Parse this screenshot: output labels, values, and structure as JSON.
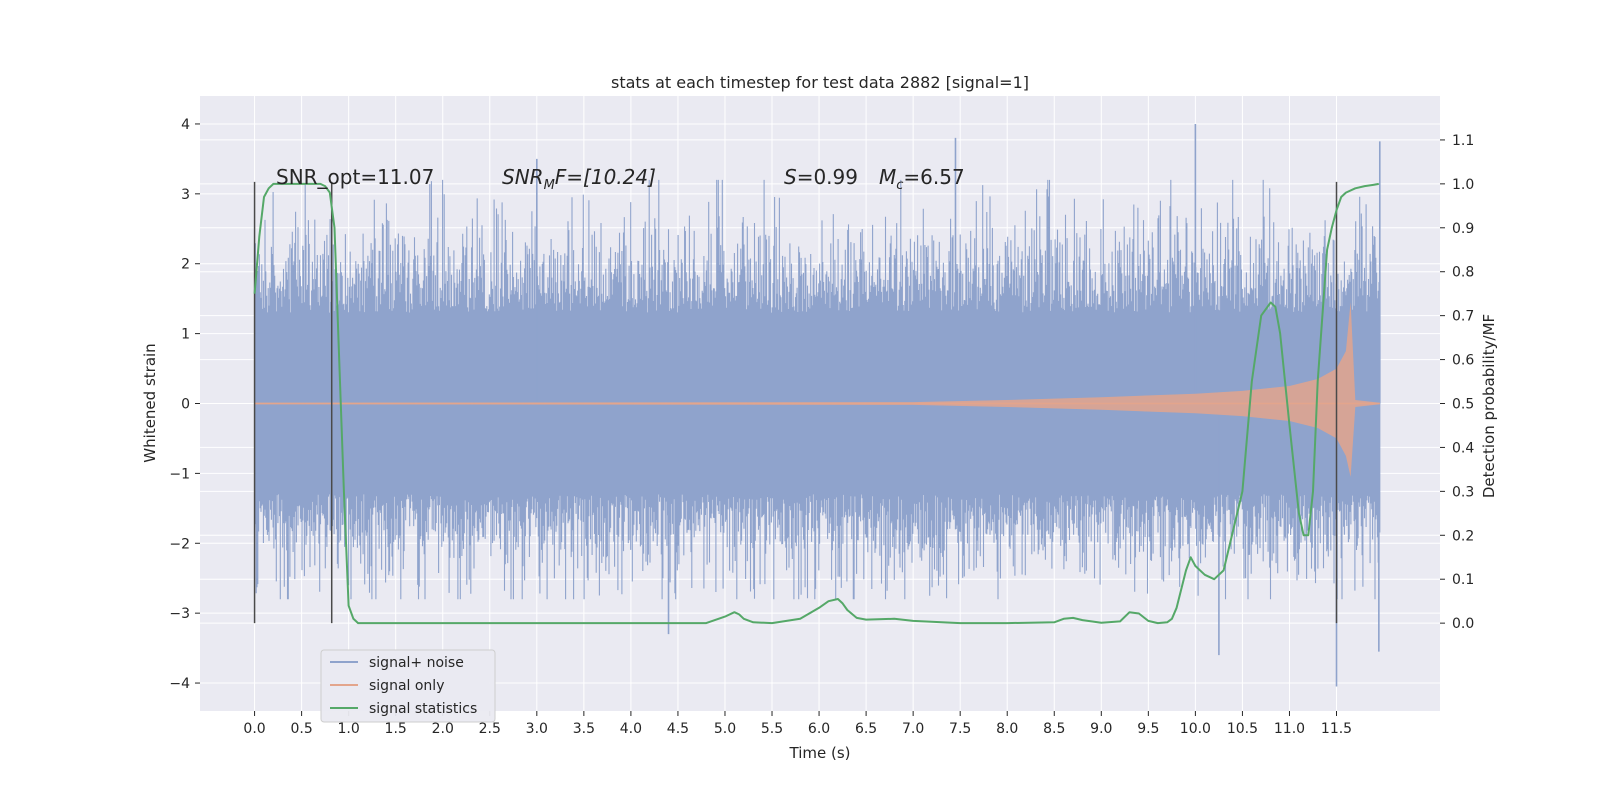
{
  "chart_data": {
    "type": "line",
    "title": "stats at each timestep for test data 2882 [signal=1]",
    "xlabel": "Time (s)",
    "ylabel_left": "Whitened strain",
    "ylabel_right": "Detection probability/MF",
    "xlim": [
      -0.58,
      12.6
    ],
    "ylim_left": [
      -4.4,
      4.4
    ],
    "ylim_right": [
      -0.2,
      1.2
    ],
    "x_ticks": [
      "0.0",
      "0.5",
      "1.0",
      "1.5",
      "2.0",
      "2.5",
      "3.0",
      "3.5",
      "4.0",
      "4.5",
      "5.0",
      "5.5",
      "6.0",
      "6.5",
      "7.0",
      "7.5",
      "8.0",
      "8.5",
      "9.0",
      "9.5",
      "10.0",
      "10.5",
      "11.0",
      "11.5"
    ],
    "y_ticks_left": [
      "4",
      "3",
      "2",
      "1",
      "0",
      "−1",
      "−2",
      "−3",
      "−4"
    ],
    "y_ticks_right": [
      "1.1",
      "1.0",
      "0.9",
      "0.8",
      "0.7",
      "0.6",
      "0.5",
      "0.4",
      "0.3",
      "0.2",
      "0.1",
      "0.0"
    ],
    "grid": true,
    "legend_position": "lower-left",
    "annotations": {
      "snr_opt": "SNR_opt=11.07",
      "snr_mf_main": "SNR",
      "snr_mf_sub": "M",
      "snr_mf_rest": "F=[10.24]",
      "s_main": "S",
      "s_rest": "=0.99",
      "mc_main": "M",
      "mc_sub": "c",
      "mc_rest": "=6.57"
    },
    "vertical_lines_x": [
      0.0,
      0.82,
      11.5
    ],
    "series": [
      {
        "name": "signal+ noise",
        "color": "#8fa3cc",
        "x_range": [
          0.0,
          11.96
        ],
        "envelope_1sigma": 1.25,
        "typical_range": [
          -2.2,
          2.6
        ],
        "extremes": [
          4.0,
          -4.05
        ]
      },
      {
        "name": "signal only",
        "color": "#e3a58c",
        "x_range": [
          0.0,
          11.96
        ],
        "peak_time": 11.65,
        "peak_amplitude": [
          1.45,
          -1.05
        ],
        "envelope": [
          [
            0.0,
            0.01
          ],
          [
            7.0,
            0.02
          ],
          [
            8.0,
            0.05
          ],
          [
            9.0,
            0.09
          ],
          [
            10.0,
            0.14
          ],
          [
            10.5,
            0.18
          ],
          [
            11.0,
            0.25
          ],
          [
            11.3,
            0.35
          ],
          [
            11.5,
            0.5
          ],
          [
            11.6,
            0.75
          ],
          [
            11.65,
            1.45
          ],
          [
            11.7,
            0.05
          ],
          [
            11.96,
            0.01
          ]
        ]
      },
      {
        "name": "signal statistics",
        "color": "#55a868",
        "x": [
          0.0,
          0.05,
          0.1,
          0.15,
          0.2,
          0.3,
          0.5,
          0.7,
          0.75,
          0.8,
          0.85,
          0.9,
          0.95,
          1.0,
          1.05,
          1.1,
          1.2,
          1.5,
          2.0,
          3.0,
          4.0,
          4.8,
          5.0,
          5.1,
          5.15,
          5.2,
          5.3,
          5.5,
          5.8,
          6.0,
          6.1,
          6.2,
          6.25,
          6.3,
          6.4,
          6.5,
          6.8,
          7.0,
          7.5,
          8.0,
          8.5,
          8.6,
          8.7,
          8.8,
          9.0,
          9.2,
          9.3,
          9.4,
          9.5,
          9.6,
          9.7,
          9.75,
          9.8,
          9.9,
          9.95,
          10.0,
          10.1,
          10.2,
          10.3,
          10.5,
          10.6,
          10.7,
          10.8,
          10.85,
          10.9,
          11.0,
          11.1,
          11.15,
          11.2,
          11.25,
          11.3,
          11.4,
          11.45,
          11.5,
          11.55,
          11.6,
          11.7,
          11.8,
          11.9,
          11.95
        ],
        "y": [
          0.75,
          0.88,
          0.97,
          0.99,
          1.0,
          1.0,
          1.0,
          1.0,
          0.995,
          0.98,
          0.9,
          0.6,
          0.3,
          0.04,
          0.01,
          0.0,
          0.0,
          0.0,
          0.0,
          0.0,
          0.0,
          0.0,
          0.015,
          0.025,
          0.02,
          0.01,
          0.002,
          0.0,
          0.01,
          0.035,
          0.05,
          0.055,
          0.045,
          0.03,
          0.012,
          0.008,
          0.01,
          0.005,
          0.0,
          0.0,
          0.002,
          0.01,
          0.012,
          0.007,
          0.001,
          0.004,
          0.025,
          0.022,
          0.005,
          0.0,
          0.002,
          0.01,
          0.035,
          0.12,
          0.15,
          0.13,
          0.11,
          0.1,
          0.12,
          0.3,
          0.55,
          0.7,
          0.73,
          0.72,
          0.66,
          0.45,
          0.25,
          0.2,
          0.2,
          0.3,
          0.55,
          0.85,
          0.9,
          0.94,
          0.97,
          0.98,
          0.99,
          0.995,
          0.998,
          1.0
        ]
      }
    ]
  }
}
